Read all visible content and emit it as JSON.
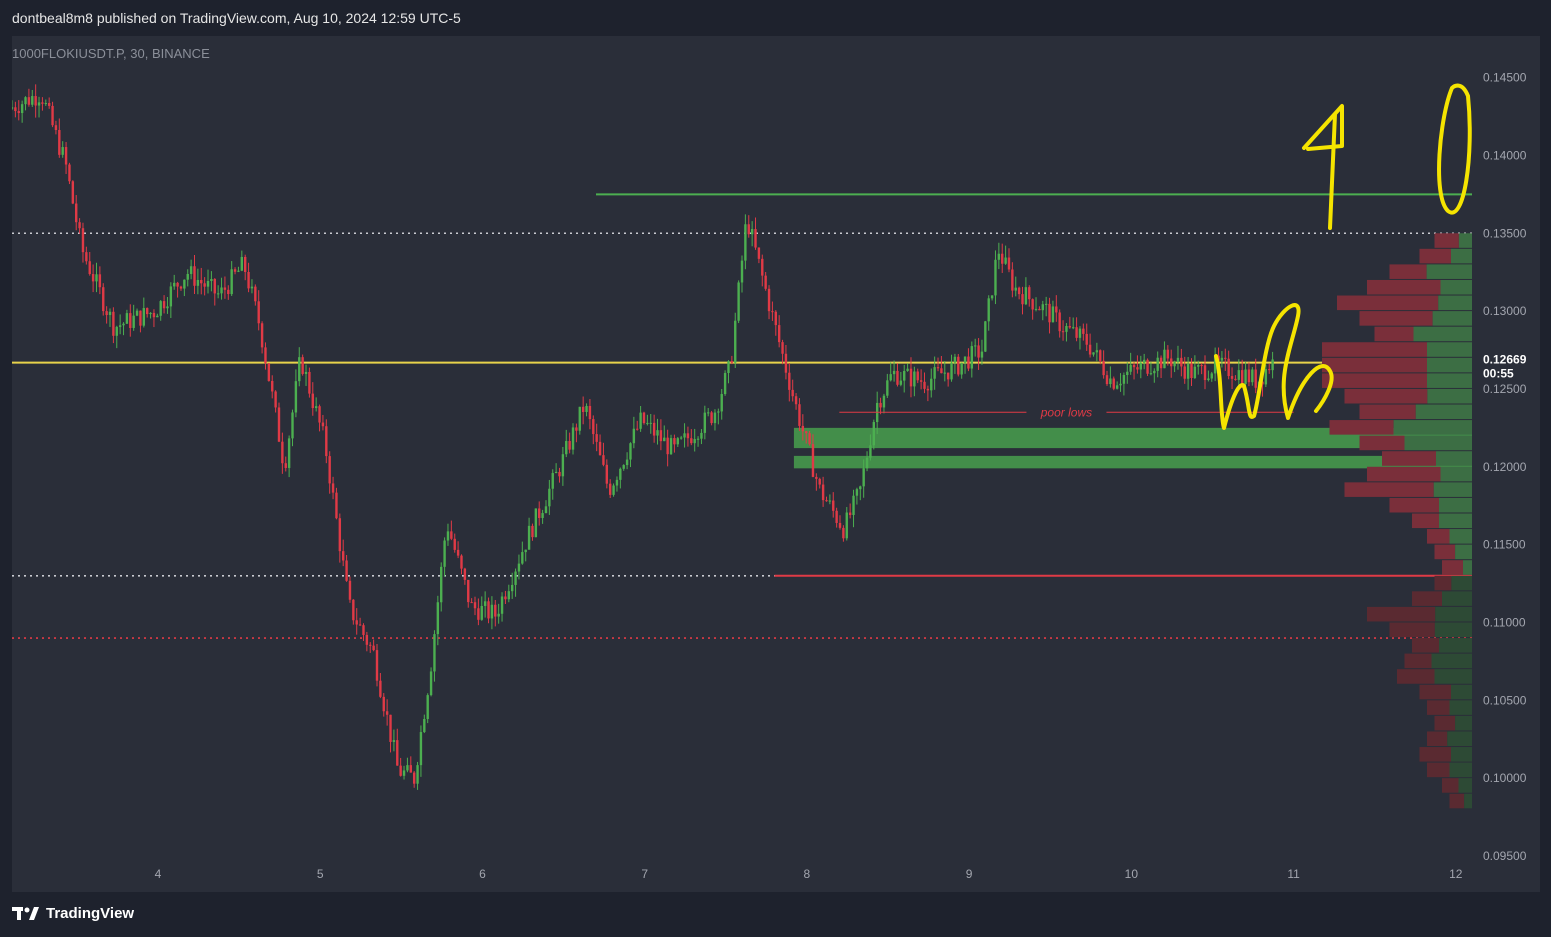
{
  "header": {
    "publish_line": "dontbeal8m8 published on TradingView.com, Aug 10, 2024 12:59 UTC-5"
  },
  "symbol": {
    "label": "1000FLOKIUSDT.P, 30, BINANCE"
  },
  "footer": {
    "brand": "TradingView"
  },
  "colors": {
    "background": "#1e222d",
    "pane": "#2a2e39",
    "up": "#4caf50",
    "down": "#e03a46",
    "level_yellow": "#e8d34b",
    "level_green": "#4caf50",
    "annotation_yellow": "#f5e400",
    "poor_lows": "#e03a46"
  },
  "chart_data": {
    "type": "candlestick",
    "ylim": [
      0.095,
      0.146
    ],
    "xlim": [
      3.1,
      12.1
    ],
    "y_ticks": [
      "0.14500",
      "0.14000",
      "0.13500",
      "0.13000",
      "0.12500",
      "0.12000",
      "0.11500",
      "0.11000",
      "0.10500",
      "0.10000",
      "0.09500"
    ],
    "x_ticks": [
      {
        "label": "4",
        "x": 4
      },
      {
        "label": "5",
        "x": 5
      },
      {
        "label": "6",
        "x": 6
      },
      {
        "label": "7",
        "x": 7
      },
      {
        "label": "8",
        "x": 8
      },
      {
        "label": "9",
        "x": 9
      },
      {
        "label": "10",
        "x": 10
      },
      {
        "label": "11",
        "x": 11
      },
      {
        "label": "12",
        "x": 12
      }
    ],
    "last_price": {
      "value": 0.12669,
      "label": "0.12669",
      "countdown": "00:55"
    },
    "price_path": [
      [
        3.1,
        0.143
      ],
      [
        3.3,
        0.144
      ],
      [
        3.45,
        0.1395
      ],
      [
        3.55,
        0.134
      ],
      [
        3.75,
        0.129
      ],
      [
        4.0,
        0.13
      ],
      [
        4.2,
        0.1325
      ],
      [
        4.4,
        0.131
      ],
      [
        4.55,
        0.133
      ],
      [
        4.65,
        0.129
      ],
      [
        4.8,
        0.12
      ],
      [
        4.9,
        0.127
      ],
      [
        5.05,
        0.1215
      ],
      [
        5.2,
        0.111
      ],
      [
        5.35,
        0.108
      ],
      [
        5.5,
        0.1005
      ],
      [
        5.6,
        0.1
      ],
      [
        5.7,
        0.107
      ],
      [
        5.8,
        0.1165
      ],
      [
        5.95,
        0.111
      ],
      [
        6.1,
        0.1105
      ],
      [
        6.3,
        0.1155
      ],
      [
        6.5,
        0.12
      ],
      [
        6.65,
        0.124
      ],
      [
        6.8,
        0.1185
      ],
      [
        7.0,
        0.123
      ],
      [
        7.2,
        0.121
      ],
      [
        7.45,
        0.1235
      ],
      [
        7.55,
        0.1265
      ],
      [
        7.65,
        0.136
      ],
      [
        7.8,
        0.13
      ],
      [
        7.95,
        0.124
      ],
      [
        8.1,
        0.1185
      ],
      [
        8.25,
        0.116
      ],
      [
        8.35,
        0.1185
      ],
      [
        8.45,
        0.124
      ],
      [
        8.55,
        0.126
      ],
      [
        8.75,
        0.1255
      ],
      [
        8.95,
        0.1265
      ],
      [
        9.1,
        0.1275
      ],
      [
        9.2,
        0.134
      ],
      [
        9.3,
        0.1315
      ],
      [
        9.5,
        0.13
      ],
      [
        9.6,
        0.129
      ],
      [
        9.75,
        0.128
      ],
      [
        9.9,
        0.1255
      ],
      [
        10.1,
        0.1265
      ],
      [
        10.25,
        0.127
      ],
      [
        10.4,
        0.126
      ],
      [
        10.55,
        0.1265
      ],
      [
        10.7,
        0.126
      ],
      [
        10.8,
        0.1255
      ],
      [
        10.88,
        0.1267
      ]
    ],
    "levels": [
      {
        "name": "resistance-green",
        "price": 0.1375,
        "from_x": 6.7,
        "to_x": 12.1,
        "style": "solid",
        "color": "#4caf50"
      },
      {
        "name": "dotted-high",
        "price": 0.135,
        "from_x": 3.1,
        "to_x": 12.1,
        "style": "dotted",
        "color": "#c9cbd1"
      },
      {
        "name": "yellow-level",
        "price": 0.12669,
        "from_x": 3.1,
        "to_x": 12.1,
        "style": "solid",
        "color": "#e8d34b"
      },
      {
        "name": "dotted-low",
        "price": 0.113,
        "from_x": 3.1,
        "to_x": 7.8,
        "style": "dotted",
        "color": "#c9cbd1"
      },
      {
        "name": "red-low",
        "price": 0.113,
        "from_x": 7.8,
        "to_x": 12.1,
        "style": "solid",
        "color": "#e03a46"
      },
      {
        "name": "red-dotted",
        "price": 0.109,
        "from_x": 3.1,
        "to_x": 12.1,
        "style": "dotted",
        "color": "#e03a46"
      }
    ],
    "zones": [
      {
        "price_top": 0.1225,
        "price_bottom": 0.1212,
        "from_x": 7.92,
        "to_x": 12.1
      },
      {
        "price_top": 0.1207,
        "price_bottom": 0.1199,
        "from_x": 7.92,
        "to_x": 12.1
      }
    ],
    "annotations": [
      {
        "text": "poor lows",
        "price": 0.1235,
        "from_x": 8.2,
        "to_x": 11.0
      }
    ],
    "volume_profile": [
      {
        "price": 0.1345,
        "width": 0.25,
        "up": 0.35
      },
      {
        "price": 0.1335,
        "width": 0.35,
        "up": 0.4
      },
      {
        "price": 0.1325,
        "width": 0.55,
        "up": 0.55
      },
      {
        "price": 0.1315,
        "width": 0.7,
        "up": 0.3
      },
      {
        "price": 0.1305,
        "width": 0.9,
        "up": 0.25
      },
      {
        "price": 0.1295,
        "width": 0.75,
        "up": 0.35
      },
      {
        "price": 0.1285,
        "width": 0.65,
        "up": 0.6
      },
      {
        "price": 0.1275,
        "width": 1.0,
        "up": 0.3
      },
      {
        "price": 0.1265,
        "width": 1.0,
        "up": 0.3
      },
      {
        "price": 0.1255,
        "width": 1.0,
        "up": 0.3
      },
      {
        "price": 0.1245,
        "width": 0.85,
        "up": 0.35
      },
      {
        "price": 0.1235,
        "width": 0.75,
        "up": 0.5
      },
      {
        "price": 0.1225,
        "width": 0.95,
        "up": 0.55
      },
      {
        "price": 0.1215,
        "width": 0.75,
        "up": 0.6
      },
      {
        "price": 0.1205,
        "width": 0.6,
        "up": 0.4
      },
      {
        "price": 0.1195,
        "width": 0.7,
        "up": 0.3
      },
      {
        "price": 0.1185,
        "width": 0.85,
        "up": 0.3
      },
      {
        "price": 0.1175,
        "width": 0.55,
        "up": 0.4
      },
      {
        "price": 0.1165,
        "width": 0.4,
        "up": 0.55
      },
      {
        "price": 0.1155,
        "width": 0.3,
        "up": 0.5
      },
      {
        "price": 0.1145,
        "width": 0.25,
        "up": 0.45
      },
      {
        "price": 0.1135,
        "width": 0.2,
        "up": 0.3
      },
      {
        "price": 0.1125,
        "width": 0.25,
        "up": 0.55
      },
      {
        "price": 0.1115,
        "width": 0.4,
        "up": 0.5
      },
      {
        "price": 0.1105,
        "width": 0.7,
        "up": 0.35
      },
      {
        "price": 0.1095,
        "width": 0.55,
        "up": 0.45
      },
      {
        "price": 0.1085,
        "width": 0.4,
        "up": 0.55
      },
      {
        "price": 0.1075,
        "width": 0.45,
        "up": 0.6
      },
      {
        "price": 0.1065,
        "width": 0.5,
        "up": 0.5
      },
      {
        "price": 0.1055,
        "width": 0.35,
        "up": 0.4
      },
      {
        "price": 0.1045,
        "width": 0.3,
        "up": 0.5
      },
      {
        "price": 0.1035,
        "width": 0.25,
        "up": 0.45
      },
      {
        "price": 0.1025,
        "width": 0.3,
        "up": 0.55
      },
      {
        "price": 0.1015,
        "width": 0.35,
        "up": 0.4
      },
      {
        "price": 0.1005,
        "width": 0.3,
        "up": 0.5
      },
      {
        "price": 0.0995,
        "width": 0.2,
        "up": 0.45
      },
      {
        "price": 0.0985,
        "width": 0.15,
        "up": 0.35
      }
    ]
  }
}
